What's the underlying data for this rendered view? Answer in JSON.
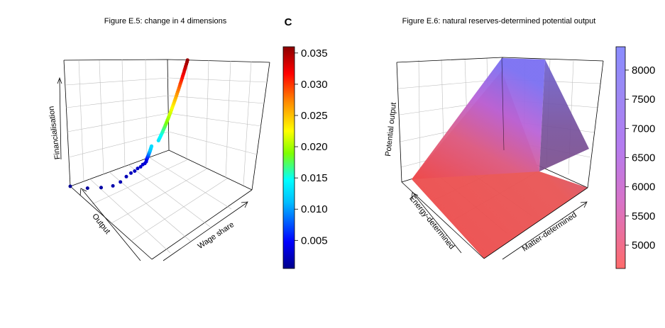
{
  "chart_data": [
    {
      "type": "scatter",
      "title": "Figure E.5: change in 4 dimensions",
      "axes": {
        "x_label": "Wage share",
        "y_label": "Output",
        "z_label": "Financialisation"
      },
      "color_scale": {
        "title": "C",
        "ticks": [
          "0.005",
          "0.010",
          "0.015",
          "0.020",
          "0.025",
          "0.030",
          "0.035"
        ],
        "range": [
          0.0005,
          0.036
        ],
        "colors": [
          "#00008b",
          "#0000ff",
          "#00bfff",
          "#00ffff",
          "#7fff00",
          "#ffff00",
          "#ff8c00",
          "#ff0000",
          "#8b0000"
        ]
      },
      "points": [
        {
          "x": 0.0,
          "y": 1.0,
          "z": 0.0,
          "c": 0.0008
        },
        {
          "x": 0.05,
          "y": 0.85,
          "z": 0.05,
          "c": 0.0012
        },
        {
          "x": 0.08,
          "y": 0.72,
          "z": 0.12,
          "c": 0.0015
        },
        {
          "x": 0.1,
          "y": 0.6,
          "z": 0.2,
          "c": 0.0018
        },
        {
          "x": 0.11,
          "y": 0.52,
          "z": 0.28,
          "c": 0.002
        },
        {
          "x": 0.12,
          "y": 0.46,
          "z": 0.36,
          "c": 0.0022
        },
        {
          "x": 0.125,
          "y": 0.41,
          "z": 0.42,
          "c": 0.0024
        },
        {
          "x": 0.13,
          "y": 0.37,
          "z": 0.46,
          "c": 0.0026
        },
        {
          "x": 0.135,
          "y": 0.34,
          "z": 0.5,
          "c": 0.0028
        },
        {
          "x": 0.14,
          "y": 0.31,
          "z": 0.53,
          "c": 0.003
        },
        {
          "x": 0.145,
          "y": 0.29,
          "z": 0.56,
          "c": 0.0032
        },
        {
          "x": 0.15,
          "y": 0.27,
          "z": 0.58,
          "c": 0.0034
        },
        {
          "x": 0.155,
          "y": 0.26,
          "z": 0.6,
          "c": 0.0036
        }
      ],
      "curve_segment": {
        "c_start": 0.004,
        "c_end": 0.0355
      }
    },
    {
      "type": "surface",
      "title": "Figure E.6: natural reserves-determined potential output",
      "axes": {
        "x_label": "Matter-determined",
        "y_label": "Energy-determined",
        "z_label": "Potential output"
      },
      "color_scale": {
        "ticks": [
          "5000",
          "5500",
          "6000",
          "6500",
          "7000",
          "7500",
          "8000"
        ],
        "range": [
          4600,
          8400
        ],
        "colors": [
          "#ff6b6b",
          "#d873c8",
          "#b47cf0",
          "#9b89f5",
          "#8a8cff"
        ]
      },
      "surface": {
        "value_min": 4600,
        "value_max": 8400,
        "description_none": ""
      }
    }
  ]
}
